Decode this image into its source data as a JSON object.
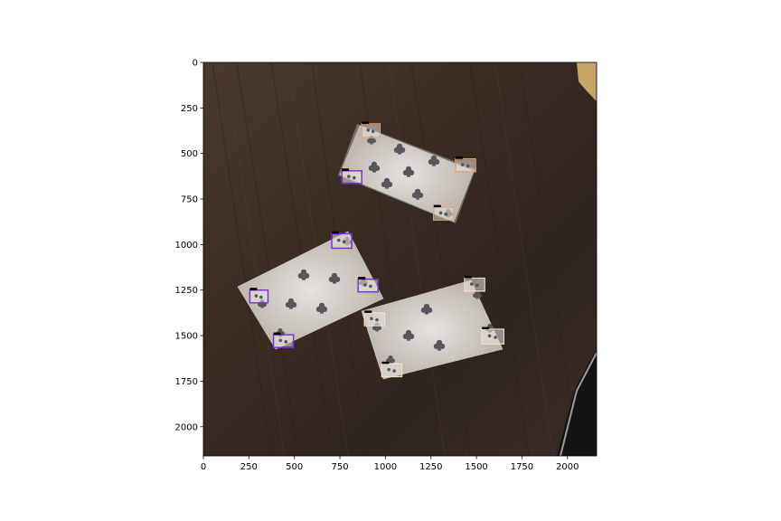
{
  "figure": {
    "image_extent": {
      "x": [
        0,
        2160
      ],
      "y": [
        0,
        2160
      ]
    },
    "y_axis_inverted": true,
    "grid": false,
    "x_ticks": [
      "0",
      "250",
      "500",
      "750",
      "1000",
      "1250",
      "1500",
      "1750",
      "2000"
    ],
    "y_ticks": [
      "0",
      "250",
      "500",
      "750",
      "1000",
      "1250",
      "1500",
      "1750",
      "2000"
    ],
    "colors": {
      "table": "#3a2b22",
      "card": "#d8d3cd",
      "pip": "#55565c",
      "box_orange": "#e0a77c",
      "box_purple": "#7d2fd2",
      "box_cream": "#efe3c8"
    }
  },
  "photo": {
    "scene": "three playing cards lying on a dark wooden table",
    "cards": [
      {
        "name": "card-top",
        "rank": "3",
        "suit": "clubs-icon",
        "box_color": "#e0a77c"
      },
      {
        "name": "card-left",
        "rank": "3",
        "suit": "clubs-icon",
        "box_color": "#7d2fd2"
      },
      {
        "name": "card-right",
        "rank": "K",
        "suit": "clubs-icon",
        "box_color": "#efe3c8"
      }
    ]
  },
  "detections": [
    {
      "card": "card-top",
      "x": 920,
      "y": 375,
      "w": 100,
      "h": 75,
      "color": "#e0a77c"
    },
    {
      "card": "card-top",
      "x": 1440,
      "y": 565,
      "w": 110,
      "h": 70,
      "color": "#e0a77c"
    },
    {
      "card": "card-top",
      "x": 1320,
      "y": 830,
      "w": 110,
      "h": 70,
      "color": "#e0a77c"
    },
    {
      "card": "card-left",
      "x": 815,
      "y": 630,
      "w": 110,
      "h": 70,
      "color": "#7d2fd2"
    },
    {
      "card": "card-left",
      "x": 760,
      "y": 980,
      "w": 110,
      "h": 80,
      "color": "#7d2fd2"
    },
    {
      "card": "card-left",
      "x": 905,
      "y": 1225,
      "w": 110,
      "h": 70,
      "color": "#7d2fd2"
    },
    {
      "card": "card-left",
      "x": 305,
      "y": 1285,
      "w": 100,
      "h": 70,
      "color": "#7d2fd2"
    },
    {
      "card": "card-left",
      "x": 440,
      "y": 1530,
      "w": 110,
      "h": 70,
      "color": "#7d2fd2"
    },
    {
      "card": "card-right",
      "x": 1490,
      "y": 1220,
      "w": 110,
      "h": 70,
      "color": "#efe3c8"
    },
    {
      "card": "card-right",
      "x": 940,
      "y": 1410,
      "w": 110,
      "h": 70,
      "color": "#efe3c8"
    },
    {
      "card": "card-right",
      "x": 1590,
      "y": 1505,
      "w": 120,
      "h": 80,
      "color": "#efe3c8"
    },
    {
      "card": "card-right",
      "x": 1035,
      "y": 1690,
      "w": 110,
      "h": 70,
      "color": "#efe3c8"
    }
  ]
}
